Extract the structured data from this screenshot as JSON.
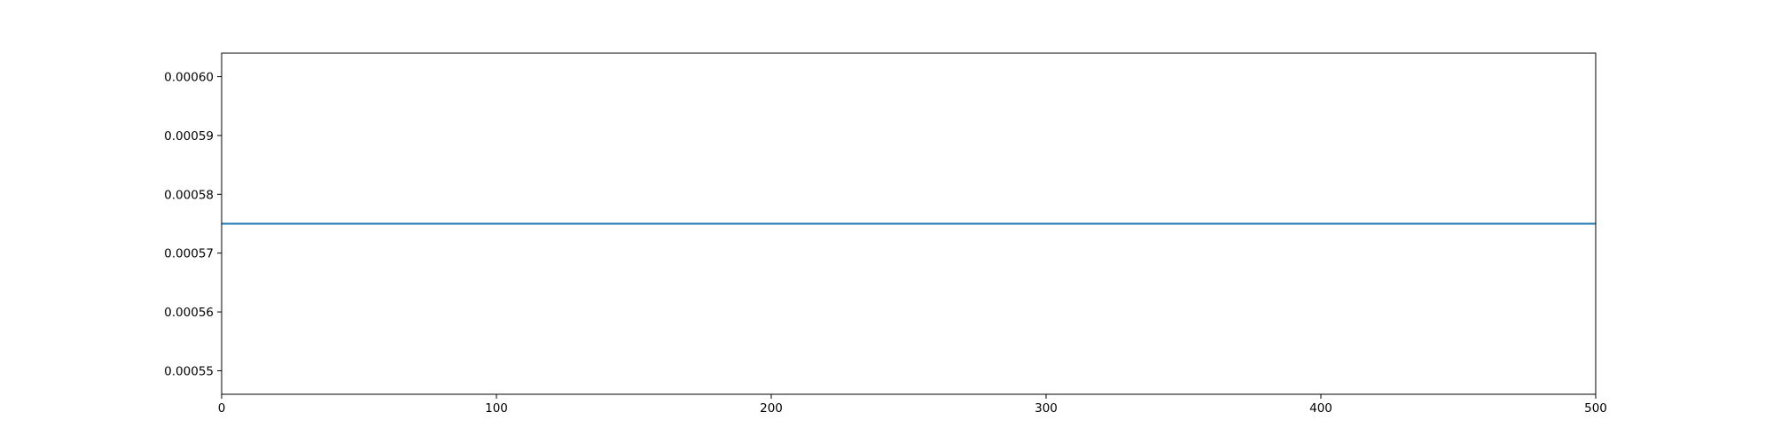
{
  "chart_data": {
    "type": "line",
    "title": "",
    "xlabel": "",
    "ylabel": "",
    "xlim": [
      0,
      500
    ],
    "ylim": [
      0.000546,
      0.000604
    ],
    "x_ticks": [
      0,
      100,
      200,
      300,
      400,
      500
    ],
    "x_tick_labels": [
      "0",
      "100",
      "200",
      "300",
      "400",
      "500"
    ],
    "y_ticks": [
      0.00055,
      0.00056,
      0.00057,
      0.00058,
      0.00059,
      0.0006
    ],
    "y_tick_labels": [
      "0.00055",
      "0.00056",
      "0.00057",
      "0.00058",
      "0.00059",
      "0.00060"
    ],
    "grid": false,
    "series": [
      {
        "color": "#1f77b4",
        "x": [
          0,
          500
        ],
        "y": [
          0.000575,
          0.000575
        ]
      }
    ]
  }
}
